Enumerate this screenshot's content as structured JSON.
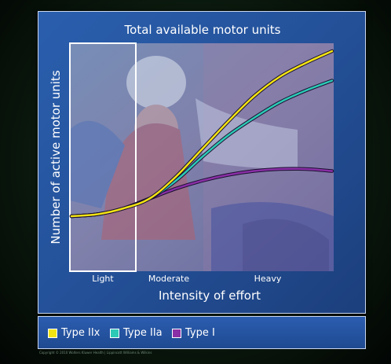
{
  "chart_data": {
    "type": "line",
    "title": "Total available motor units",
    "xlabel": "Intensity of effort",
    "ylabel": "Number of active motor units",
    "x_range": [
      0,
      1
    ],
    "y_range": [
      0,
      1
    ],
    "zones": [
      {
        "label": "Light",
        "start": 0.0,
        "end": 0.25,
        "outlined": true
      },
      {
        "label": "Moderate",
        "start": 0.25,
        "end": 0.5,
        "outlined": false
      },
      {
        "label": "Heavy",
        "start": 0.5,
        "end": 1.0,
        "outlined": false
      }
    ],
    "series": [
      {
        "name": "Type IIx",
        "color": "#f2e313",
        "x": [
          0.0,
          0.1,
          0.2,
          0.3,
          0.4,
          0.5,
          0.6,
          0.7,
          0.8,
          0.9,
          1.0
        ],
        "y": [
          0.16,
          0.17,
          0.2,
          0.25,
          0.36,
          0.5,
          0.64,
          0.77,
          0.87,
          0.94,
          1.0
        ]
      },
      {
        "name": "Type IIa",
        "color": "#2cc9b6",
        "x": [
          0.0,
          0.1,
          0.2,
          0.3,
          0.4,
          0.5,
          0.6,
          0.7,
          0.8,
          0.9,
          1.0
        ],
        "y": [
          0.16,
          0.17,
          0.2,
          0.25,
          0.34,
          0.46,
          0.57,
          0.66,
          0.74,
          0.8,
          0.85
        ]
      },
      {
        "name": "Type I",
        "color": "#8a2fa6",
        "x": [
          0.0,
          0.1,
          0.2,
          0.3,
          0.4,
          0.5,
          0.6,
          0.7,
          0.8,
          0.9,
          1.0
        ],
        "y": [
          0.16,
          0.17,
          0.2,
          0.25,
          0.3,
          0.34,
          0.37,
          0.39,
          0.4,
          0.4,
          0.39
        ]
      }
    ]
  },
  "legend": {
    "items": [
      {
        "label": "Type IIx",
        "color": "#f2e313"
      },
      {
        "label": "Type IIa",
        "color": "#2cc9b6"
      },
      {
        "label": "Type I",
        "color": "#8a2fa6"
      }
    ]
  },
  "copyright": "Copyright © 2010 Wolters Kluwer Health | Lippincott Williams & Wilkins"
}
